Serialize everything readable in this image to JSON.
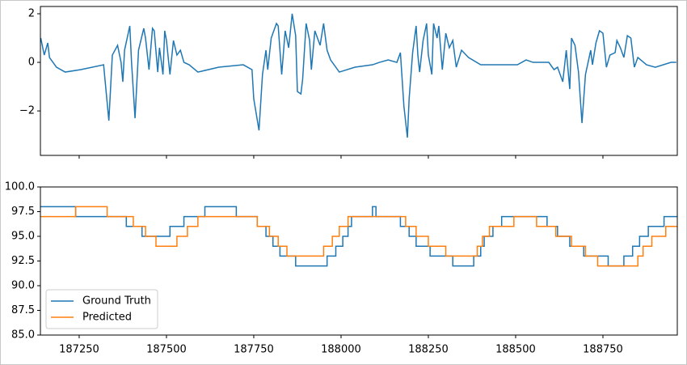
{
  "chart_data": [
    {
      "type": "line",
      "sharex": true,
      "ylim": [
        -3.83,
        2.3
      ],
      "yticks": [
        {
          "value": -2,
          "label": "−2"
        },
        0,
        2
      ],
      "series": [
        {
          "color": "#1f77b4",
          "x": [
            187140,
            187150,
            187160,
            187165,
            187185,
            187210,
            187255,
            187320,
            187335,
            187345,
            187360,
            187370,
            187375,
            187380,
            187395,
            187400,
            187410,
            187420,
            187435,
            187440,
            187450,
            187460,
            187465,
            187475,
            187480,
            187490,
            187495,
            187500,
            187510,
            187520,
            187530,
            187540,
            187550,
            187565,
            187590,
            187650,
            187720,
            187745,
            187750,
            187765,
            187775,
            187785,
            187790,
            187800,
            187815,
            187820,
            187830,
            187840,
            187850,
            187860,
            187870,
            187875,
            187885,
            187890,
            187900,
            187910,
            187915,
            187925,
            187940,
            187950,
            187960,
            187970,
            187995,
            188040,
            188090,
            188110,
            188135,
            188160,
            188170,
            188180,
            188190,
            188195,
            188205,
            188215,
            188220,
            188225,
            188235,
            188245,
            188250,
            188260,
            188265,
            188275,
            188280,
            188290,
            188300,
            188310,
            188320,
            188330,
            188345,
            188365,
            188400,
            188435,
            188505,
            188530,
            188550,
            188595,
            188610,
            188620,
            188635,
            188645,
            188655,
            188660,
            188670,
            188680,
            188690,
            188700,
            188715,
            188720,
            188730,
            188740,
            188750,
            188760,
            188770,
            188785,
            188790,
            188800,
            188810,
            188820,
            188830,
            188840,
            188850,
            188875,
            188900,
            188945,
            188960
          ],
          "values": [
            1.0,
            0.3,
            0.8,
            0.2,
            -0.2,
            -0.4,
            -0.3,
            -0.1,
            -2.4,
            0.3,
            0.7,
            0.0,
            -0.8,
            0.5,
            1.5,
            0.0,
            -2.3,
            0.5,
            1.4,
            1.0,
            -0.3,
            1.4,
            1.3,
            -0.4,
            0.6,
            -0.5,
            1.3,
            0.9,
            -0.5,
            0.9,
            0.3,
            0.5,
            0.0,
            -0.1,
            -0.4,
            -0.2,
            -0.1,
            -0.3,
            -1.5,
            -2.8,
            -0.5,
            0.5,
            -0.3,
            1.0,
            1.6,
            1.5,
            -0.5,
            1.3,
            0.6,
            2.0,
            1.1,
            -1.2,
            -1.3,
            -0.7,
            1.6,
            0.9,
            -0.3,
            1.3,
            0.7,
            1.6,
            0.5,
            0.1,
            -0.4,
            -0.2,
            -0.1,
            0.0,
            0.1,
            0.0,
            0.4,
            -1.8,
            -3.1,
            -1.5,
            0.4,
            1.5,
            0.3,
            -0.4,
            0.9,
            1.6,
            0.3,
            -0.5,
            1.6,
            1.0,
            1.5,
            -0.3,
            1.2,
            0.6,
            0.9,
            -0.2,
            0.5,
            0.2,
            -0.1,
            -0.1,
            -0.1,
            0.1,
            0.0,
            0.0,
            -0.3,
            -0.2,
            -0.8,
            0.5,
            -1.1,
            1.0,
            0.7,
            -0.4,
            -2.5,
            -0.5,
            0.5,
            -0.1,
            0.8,
            1.3,
            1.2,
            -0.2,
            0.3,
            0.4,
            0.9,
            0.6,
            0.2,
            1.1,
            1.0,
            -0.2,
            0.2,
            -0.1,
            -0.2,
            0.0,
            0.0
          ]
        }
      ]
    },
    {
      "type": "step",
      "legend": "lower left",
      "xlim": [
        187139,
        188963
      ],
      "xticks": [
        187250,
        187500,
        187750,
        188000,
        188250,
        188500,
        188750
      ],
      "ylim": [
        85,
        100
      ],
      "yticks": [
        {
          "value": 85,
          "label": "85.0"
        },
        87.5,
        {
          "value": 90,
          "label": "90.0"
        },
        92.5,
        {
          "value": 95,
          "label": "95.0"
        },
        97.5,
        {
          "value": 100,
          "label": "100.0"
        }
      ],
      "series": [
        {
          "name": "Ground Truth",
          "color": "#1f77b4",
          "x": [
            187139,
            187240,
            187385,
            187430,
            187510,
            187550,
            187610,
            187700,
            187760,
            187785,
            187805,
            187825,
            187870,
            187960,
            187985,
            188005,
            188020,
            188030,
            188090,
            188100,
            188170,
            188195,
            188215,
            188255,
            188320,
            188380,
            188400,
            188410,
            188435,
            188460,
            188590,
            188620,
            188655,
            188695,
            188765,
            188810,
            188835,
            188855,
            188880,
            188925,
            188963
          ],
          "values": [
            98,
            97,
            96,
            95,
            96,
            97,
            98,
            97,
            96,
            95,
            94,
            93,
            92,
            93,
            94,
            95,
            96,
            97,
            98,
            97,
            96,
            95,
            94,
            93,
            92,
            93,
            94,
            95,
            96,
            97,
            96,
            95,
            94,
            93,
            92,
            93,
            94,
            95,
            96,
            97,
            97
          ]
        },
        {
          "name": "Predicted",
          "color": "#ff7f0e",
          "x": [
            187139,
            187240,
            187330,
            187405,
            187440,
            187470,
            187530,
            187560,
            187590,
            187760,
            187795,
            187820,
            187845,
            187950,
            187975,
            187995,
            188020,
            188185,
            188215,
            188250,
            188300,
            188390,
            188405,
            188425,
            188495,
            188560,
            188615,
            188660,
            188700,
            188735,
            188850,
            188865,
            188890,
            188930,
            188963
          ],
          "values": [
            97,
            98,
            97,
            96,
            95,
            94,
            95,
            96,
            97,
            96,
            95,
            94,
            93,
            94,
            95,
            96,
            97,
            96,
            95,
            94,
            93,
            94,
            95,
            96,
            97,
            96,
            95,
            94,
            93,
            92,
            93,
            94,
            95,
            96,
            96
          ]
        }
      ]
    }
  ]
}
